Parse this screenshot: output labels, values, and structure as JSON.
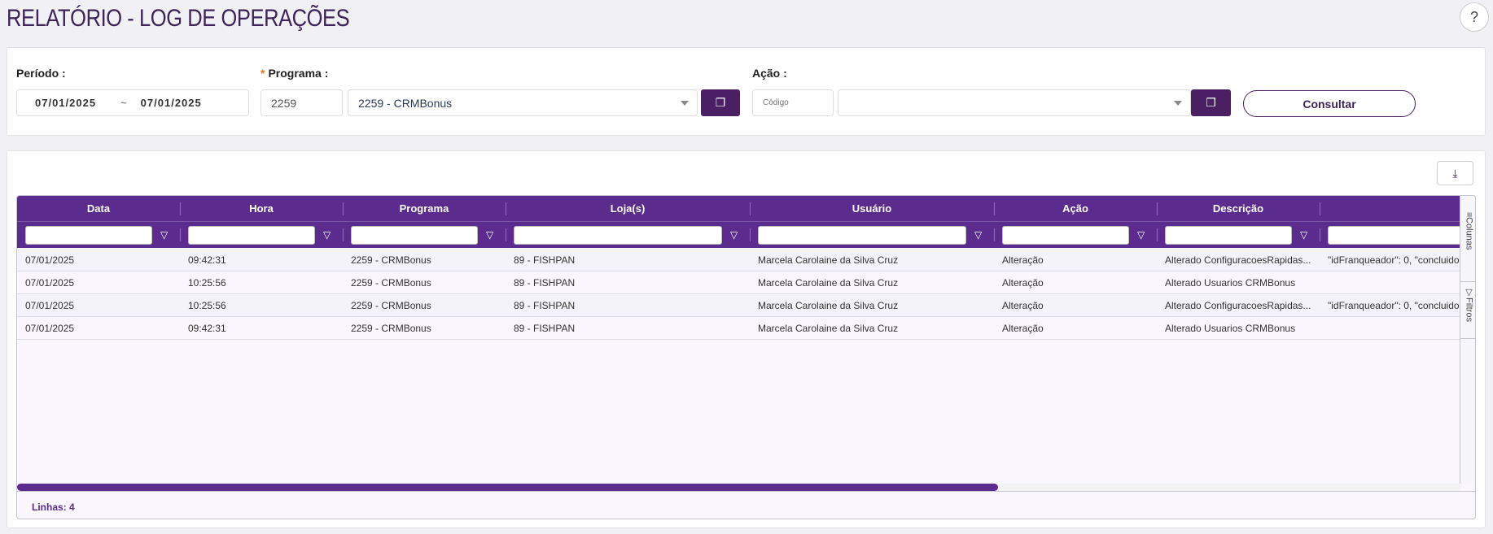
{
  "title": "RELATÓRIO - LOG DE OPERAÇÕES",
  "help_label": "?",
  "filters": {
    "periodo_label": "Período :",
    "date_start": "07/01/2025",
    "date_sep": "~",
    "date_end": "07/01/2025",
    "programa_required": "*",
    "programa_label": "Programa :",
    "programa_code": "2259",
    "programa_value": "2259 - CRMBonus",
    "acao_label": "Ação :",
    "acao_code_placeholder": "Código",
    "acao_value": "",
    "consultar_label": "Consultar"
  },
  "grid": {
    "columns": [
      "Data",
      "Hora",
      "Programa",
      "Loja(s)",
      "Usuário",
      "Ação",
      "Descrição",
      ""
    ],
    "rows": [
      [
        "07/01/2025",
        "09:42:31",
        "2259 - CRMBonus",
        "89 - FISHPAN",
        "Marcela Carolaine da Silva Cruz",
        "Alteração",
        "Alterado ConfiguracoesRapidas...",
        "\"idFranqueador\": 0, \"concluido"
      ],
      [
        "07/01/2025",
        "10:25:56",
        "2259 - CRMBonus",
        "89 - FISHPAN",
        "Marcela Carolaine da Silva Cruz",
        "Alteração",
        "Alterado Usuarios CRMBonus",
        ""
      ],
      [
        "07/01/2025",
        "10:25:56",
        "2259 - CRMBonus",
        "89 - FISHPAN",
        "Marcela Carolaine da Silva Cruz",
        "Alteração",
        "Alterado ConfiguracoesRapidas...",
        "\"idFranqueador\": 0, \"concluido"
      ],
      [
        "07/01/2025",
        "09:42:31",
        "2259 - CRMBonus",
        "89 - FISHPAN",
        "Marcela Carolaine da Silva Cruz",
        "Alteração",
        "Alterado Usuarios CRMBonus",
        ""
      ]
    ],
    "side_columns": "Colunas",
    "side_filters": "Filtros",
    "footer": "Linhas: 4",
    "scroll_fraction": 0.68
  },
  "colors": {
    "header": "#5b2c8e",
    "button": "#4a1f63"
  }
}
